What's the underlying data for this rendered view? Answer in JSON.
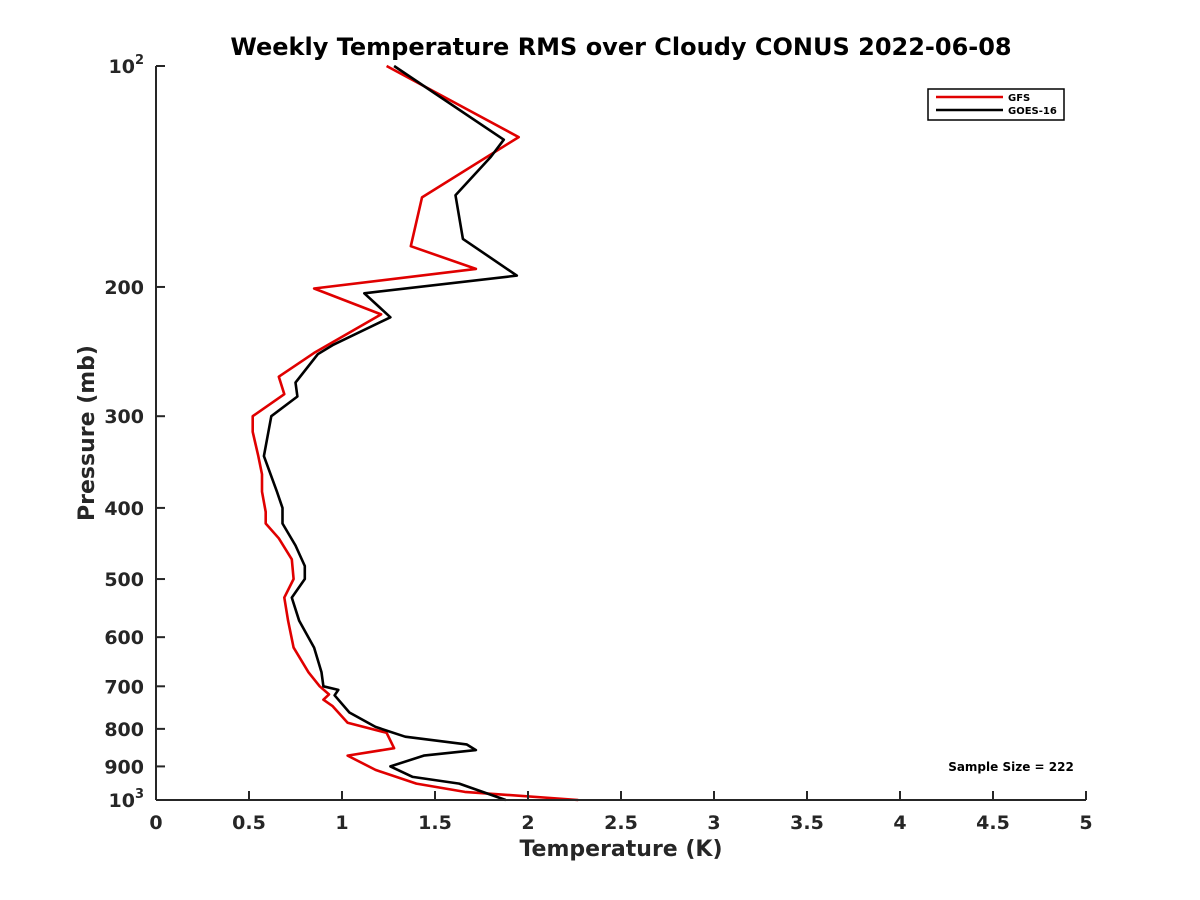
{
  "chart_data": {
    "type": "line",
    "title": "Weekly Temperature RMS over Cloudy CONUS 2022-06-08",
    "xlabel": "Temperature (K)",
    "ylabel": "Pressure (mb)",
    "xlim": [
      0,
      5
    ],
    "ylim": [
      1000,
      100
    ],
    "y_scale": "log",
    "y_reversed": true,
    "grid": false,
    "legend_position": "top-right",
    "x_ticks": [
      0,
      0.5,
      1,
      1.5,
      2,
      2.5,
      3,
      3.5,
      4,
      4.5,
      5
    ],
    "x_tick_labels": [
      "0",
      "0.5",
      "1",
      "1.5",
      "2",
      "2.5",
      "3",
      "3.5",
      "4",
      "4.5",
      "5"
    ],
    "y_ticks": [
      100,
      200,
      300,
      400,
      500,
      600,
      700,
      800,
      900,
      1000
    ],
    "y_tick_labels": [
      {
        "base": "10",
        "exp": "2"
      },
      {
        "base": "200",
        "exp": ""
      },
      {
        "base": "300",
        "exp": ""
      },
      {
        "base": "400",
        "exp": ""
      },
      {
        "base": "500",
        "exp": ""
      },
      {
        "base": "600",
        "exp": ""
      },
      {
        "base": "700",
        "exp": ""
      },
      {
        "base": "800",
        "exp": ""
      },
      {
        "base": "900",
        "exp": ""
      },
      {
        "base": "10",
        "exp": "3"
      }
    ],
    "series": [
      {
        "name": "GFS",
        "color": "#e00000",
        "points": [
          [
            1.24,
            100
          ],
          [
            1.95,
            125
          ],
          [
            1.43,
            151
          ],
          [
            1.37,
            176
          ],
          [
            1.72,
            189
          ],
          [
            0.85,
            201
          ],
          [
            1.21,
            218
          ],
          [
            0.85,
            246
          ],
          [
            0.66,
            265
          ],
          [
            0.69,
            280
          ],
          [
            0.52,
            300
          ],
          [
            0.52,
            315
          ],
          [
            0.55,
            340
          ],
          [
            0.57,
            360
          ],
          [
            0.57,
            380
          ],
          [
            0.59,
            405
          ],
          [
            0.59,
            420
          ],
          [
            0.66,
            440
          ],
          [
            0.73,
            470
          ],
          [
            0.74,
            500
          ],
          [
            0.69,
            530
          ],
          [
            0.71,
            570
          ],
          [
            0.74,
            620
          ],
          [
            0.82,
            670
          ],
          [
            0.88,
            700
          ],
          [
            0.93,
            718
          ],
          [
            0.9,
            730
          ],
          [
            0.95,
            745
          ],
          [
            1.03,
            785
          ],
          [
            1.24,
            810
          ],
          [
            1.28,
            850
          ],
          [
            1.03,
            870
          ],
          [
            1.18,
            910
          ],
          [
            1.4,
            950
          ],
          [
            1.66,
            975
          ],
          [
            2.27,
            1000
          ]
        ]
      },
      {
        "name": "GOES-16",
        "color": "#000000",
        "points": [
          [
            1.28,
            100
          ],
          [
            1.87,
            126
          ],
          [
            1.8,
            133
          ],
          [
            1.61,
            150
          ],
          [
            1.65,
            172
          ],
          [
            1.94,
            193
          ],
          [
            1.12,
            204
          ],
          [
            1.26,
            220
          ],
          [
            0.95,
            240
          ],
          [
            0.87,
            247
          ],
          [
            0.75,
            270
          ],
          [
            0.76,
            282
          ],
          [
            0.62,
            300
          ],
          [
            0.58,
            340
          ],
          [
            0.65,
            380
          ],
          [
            0.68,
            400
          ],
          [
            0.68,
            420
          ],
          [
            0.75,
            450
          ],
          [
            0.8,
            480
          ],
          [
            0.8,
            500
          ],
          [
            0.73,
            530
          ],
          [
            0.77,
            570
          ],
          [
            0.85,
            620
          ],
          [
            0.89,
            670
          ],
          [
            0.9,
            700
          ],
          [
            0.98,
            708
          ],
          [
            0.96,
            720
          ],
          [
            1.04,
            760
          ],
          [
            1.18,
            795
          ],
          [
            1.34,
            820
          ],
          [
            1.67,
            840
          ],
          [
            1.72,
            855
          ],
          [
            1.44,
            870
          ],
          [
            1.26,
            900
          ],
          [
            1.38,
            930
          ],
          [
            1.63,
            950
          ],
          [
            1.88,
            1000
          ]
        ]
      }
    ],
    "annotations": [
      {
        "text": "Sample Size = 222"
      }
    ]
  }
}
